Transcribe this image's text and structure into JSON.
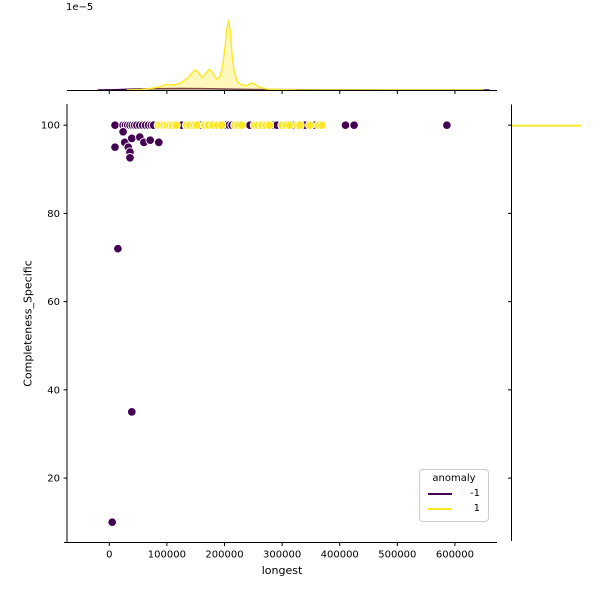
{
  "figure": {
    "offset_label": "1e−5"
  },
  "chart_data": {
    "type": "scatter",
    "title": "",
    "xlabel": "longest",
    "ylabel": "Completeness_Specific",
    "xlim": [
      -73400,
      673000
    ],
    "ylim": [
      5.4,
      104.8
    ],
    "x_ticks": [
      0,
      100000,
      200000,
      300000,
      400000,
      500000,
      600000
    ],
    "y_ticks": [
      20,
      40,
      60,
      80,
      100
    ],
    "grid": false,
    "marker_style": {
      "radius_px": 4.3,
      "edge_color": "#ffffff"
    },
    "legend": {
      "title": "anomaly",
      "position": "lower-right",
      "entries": [
        {
          "label": "-1",
          "color": "#440154"
        },
        {
          "label": "1",
          "color": "#FDE725"
        }
      ]
    },
    "series": [
      {
        "name": "-1",
        "color": "#440154",
        "points": [
          [
            10000,
            100
          ],
          [
            24000,
            100
          ],
          [
            28000,
            100
          ],
          [
            32000,
            100
          ],
          [
            36000,
            100
          ],
          [
            40000,
            100
          ],
          [
            44000,
            100
          ],
          [
            48000,
            100
          ],
          [
            53000,
            100
          ],
          [
            58000,
            100
          ],
          [
            63000,
            100
          ],
          [
            68000,
            100
          ],
          [
            73000,
            100
          ],
          [
            77000,
            100
          ],
          [
            126000,
            100
          ],
          [
            157000,
            100
          ],
          [
            201000,
            100
          ],
          [
            208000,
            100
          ],
          [
            213000,
            100
          ],
          [
            244000,
            100
          ],
          [
            285000,
            100
          ],
          [
            291000,
            100
          ],
          [
            319000,
            100
          ],
          [
            340000,
            100
          ],
          [
            357000,
            100
          ],
          [
            410000,
            100
          ],
          [
            425000,
            100
          ],
          [
            586000,
            100
          ],
          [
            24000,
            98.5
          ],
          [
            10000,
            95
          ],
          [
            27000,
            96.1
          ],
          [
            39000,
            97
          ],
          [
            53000,
            97.3
          ],
          [
            60000,
            96.1
          ],
          [
            71000,
            96.6
          ],
          [
            86000,
            96.1
          ],
          [
            33000,
            95
          ],
          [
            36000,
            93.9
          ],
          [
            36000,
            92.6
          ],
          [
            15000,
            72
          ],
          [
            39000,
            35
          ],
          [
            5000,
            10
          ]
        ]
      },
      {
        "name": "1",
        "color": "#FDE725",
        "points": [
          [
            85000,
            100
          ],
          [
            90000,
            100
          ],
          [
            95000,
            100
          ],
          [
            100000,
            100
          ],
          [
            105000,
            100
          ],
          [
            110000,
            100
          ],
          [
            116000,
            100
          ],
          [
            134000,
            100
          ],
          [
            140000,
            100
          ],
          [
            147000,
            100
          ],
          [
            152000,
            100
          ],
          [
            166000,
            100
          ],
          [
            172000,
            100
          ],
          [
            180000,
            100
          ],
          [
            188000,
            100
          ],
          [
            195000,
            100
          ],
          [
            218000,
            100
          ],
          [
            224000,
            100
          ],
          [
            230000,
            100
          ],
          [
            252000,
            100
          ],
          [
            258000,
            100
          ],
          [
            265000,
            100
          ],
          [
            272000,
            100
          ],
          [
            278000,
            100
          ],
          [
            300000,
            100
          ],
          [
            307000,
            100
          ],
          [
            313000,
            100
          ],
          [
            326000,
            100
          ],
          [
            331000,
            100
          ],
          [
            348000,
            100
          ],
          [
            363000,
            100
          ],
          [
            369000,
            100
          ]
        ]
      }
    ],
    "marginals": {
      "top": {
        "axis": "x",
        "density_scale_label": "1e−5",
        "curves": [
          {
            "name": "-1",
            "color": "#440154",
            "points": [
              [
                -20000,
                0
              ],
              [
                10000,
                0.004
              ],
              [
                40000,
                0.012
              ],
              [
                80000,
                0.018
              ],
              [
                120000,
                0.021
              ],
              [
                160000,
                0.019
              ],
              [
                200000,
                0.014
              ],
              [
                250000,
                0.009
              ],
              [
                300000,
                0.005
              ],
              [
                380000,
                0.003
              ],
              [
                480000,
                0.002
              ],
              [
                600000,
                0.001
              ],
              [
                660000,
                0
              ]
            ]
          },
          {
            "name": "1",
            "color": "#FDE725",
            "points": [
              [
                30000,
                0
              ],
              [
                55000,
                0.008
              ],
              [
                75000,
                0.025
              ],
              [
                90000,
                0.05
              ],
              [
                100000,
                0.08
              ],
              [
                107000,
                0.07
              ],
              [
                115000,
                0.075
              ],
              [
                125000,
                0.1
              ],
              [
                135000,
                0.16
              ],
              [
                143000,
                0.23
              ],
              [
                149000,
                0.28
              ],
              [
                155000,
                0.24
              ],
              [
                161000,
                0.17
              ],
              [
                168000,
                0.24
              ],
              [
                174000,
                0.29
              ],
              [
                180000,
                0.23
              ],
              [
                186000,
                0.15
              ],
              [
                192000,
                0.18
              ],
              [
                197000,
                0.35
              ],
              [
                201000,
                0.6
              ],
              [
                204000,
                0.85
              ],
              [
                207000,
                0.97
              ],
              [
                210000,
                0.82
              ],
              [
                213000,
                0.5
              ],
              [
                217000,
                0.25
              ],
              [
                222000,
                0.12
              ],
              [
                230000,
                0.07
              ],
              [
                238000,
                0.06
              ],
              [
                245000,
                0.09
              ],
              [
                250000,
                0.095
              ],
              [
                256000,
                0.06
              ],
              [
                264000,
                0.03
              ],
              [
                275000,
                0.013
              ],
              [
                295000,
                0.005
              ],
              [
                330000,
                0.002
              ],
              [
                400000,
                0.001
              ],
              [
                550000,
                0.0003
              ],
              [
                650000,
                0
              ]
            ]
          }
        ]
      },
      "right": {
        "axis": "y",
        "curves": [
          {
            "name": "1",
            "color": "#FDE725",
            "spike_at_y": 100,
            "fraction": 0.82
          }
        ]
      }
    }
  }
}
